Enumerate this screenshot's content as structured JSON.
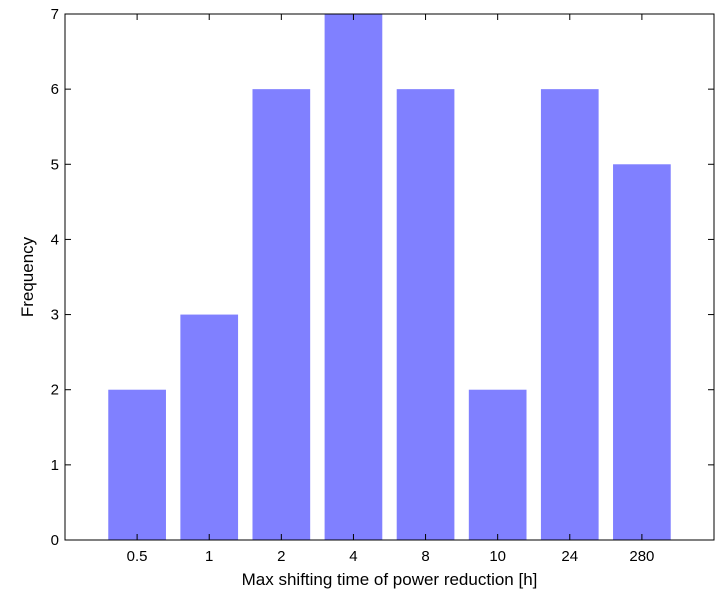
{
  "chart_data": {
    "type": "bar",
    "categories": [
      "0.5",
      "1",
      "2",
      "4",
      "8",
      "10",
      "24",
      "280"
    ],
    "values": [
      2,
      3,
      6,
      7,
      6,
      2,
      6,
      5
    ],
    "xlabel": "Max shifting time of power reduction [h]",
    "ylabel": "Frequency",
    "ylim": [
      0,
      7
    ],
    "yticks": [
      0,
      1,
      2,
      3,
      4,
      5,
      6,
      7
    ],
    "bar_color": "#8080ff",
    "grid": false
  }
}
